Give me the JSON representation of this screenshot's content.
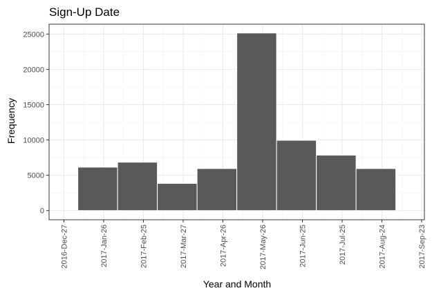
{
  "chart_data": {
    "type": "bar",
    "title": "Sign-Up Date",
    "xlabel": "Year and Month",
    "ylabel": "Frequency",
    "x_tick_labels": [
      "2016-Dec-27",
      "2017-Jan-26",
      "2017-Feb-25",
      "2017-Mar-27",
      "2017-Apr-26",
      "2017-May-26",
      "2017-Jun-25",
      "2017-Jul-25",
      "2017-Aug-24",
      "2017-Sep-23"
    ],
    "y_ticks": [
      0,
      5000,
      10000,
      15000,
      20000,
      25000
    ],
    "ylim": [
      -1300,
      26400
    ],
    "categories": [
      "2017-Jan",
      "2017-Feb",
      "2017-Mar",
      "2017-Apr",
      "2017-May",
      "2017-Jun",
      "2017-Jul",
      "2017-Aug"
    ],
    "values": [
      6150,
      6850,
      3850,
      5950,
      25150,
      9950,
      7850,
      5950
    ],
    "bar_color": "#595959",
    "grid": true,
    "legend": "none"
  }
}
